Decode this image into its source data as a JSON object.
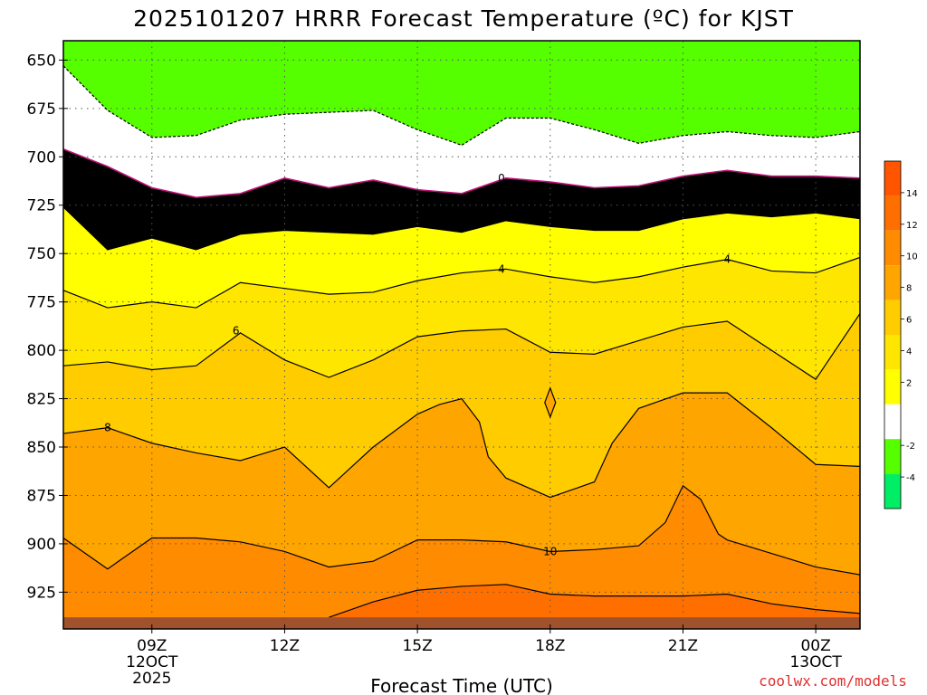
{
  "title": "2025101207 HRRR Forecast Temperature (ºC) for KJST",
  "credit": "coolwx.com/models",
  "chart_data": {
    "type": "contour",
    "xlabel": "Forecast Time (UTC)",
    "ylabel": "",
    "x_ticks": [
      {
        "x": 9,
        "lines": [
          "09Z",
          "12OCT",
          "2025"
        ]
      },
      {
        "x": 12,
        "lines": [
          "12Z"
        ]
      },
      {
        "x": 15,
        "lines": [
          "15Z"
        ]
      },
      {
        "x": 18,
        "lines": [
          "18Z"
        ]
      },
      {
        "x": 21,
        "lines": [
          "21Z"
        ]
      },
      {
        "x": 24,
        "lines": [
          "00Z",
          "13OCT"
        ]
      }
    ],
    "xlim": [
      7,
      25
    ],
    "y_ticks": [
      650,
      675,
      700,
      725,
      750,
      775,
      800,
      825,
      850,
      875,
      900,
      925
    ],
    "ylim": [
      640,
      944
    ],
    "y_axis": "pressure (hPa), increasing downward",
    "ground_level_hPa": 938,
    "colorbar": {
      "ticks": [
        -4,
        -2,
        2,
        4,
        6,
        8,
        10,
        12,
        14
      ],
      "bands": [
        {
          "from": -6,
          "to": -4,
          "color": "#00ee66"
        },
        {
          "from": -4,
          "to": -2,
          "color": "#55ff00"
        },
        {
          "from": -2,
          "to": 2,
          "color": "#ffffff"
        },
        {
          "from": 2,
          "to": 4,
          "color": "#ffff00"
        },
        {
          "from": 4,
          "to": 6,
          "color": "#ffe600"
        },
        {
          "from": 6,
          "to": 8,
          "color": "#ffcc00"
        },
        {
          "from": 8,
          "to": 10,
          "color": "#ffa500"
        },
        {
          "from": 10,
          "to": 12,
          "color": "#ff8c00"
        },
        {
          "from": 12,
          "to": 14,
          "color": "#ff6f00"
        },
        {
          "from": 14,
          "to": 16,
          "color": "#ff5500"
        }
      ]
    },
    "contour_labels": [
      {
        "value": "0",
        "x": 16.9,
        "p": 711
      },
      {
        "value": "4",
        "x": 16.9,
        "p": 758
      },
      {
        "value": "4",
        "x": 22.0,
        "p": 753
      },
      {
        "value": "6",
        "x": 10.9,
        "p": 790
      },
      {
        "value": "8",
        "x": 8.0,
        "p": 840
      },
      {
        "value": "10",
        "x": 18.0,
        "p": 904
      }
    ],
    "isotherms": [
      {
        "value": -2,
        "dashed": true,
        "x": [
          7,
          8,
          9,
          10,
          11,
          12,
          13,
          14,
          15,
          16,
          17,
          18,
          19,
          20,
          21,
          22,
          23,
          24,
          25
        ],
        "p": [
          653,
          676,
          690,
          689,
          681,
          678,
          677,
          676,
          686,
          694,
          680,
          680,
          686,
          693,
          689,
          687,
          689,
          690,
          687
        ]
      },
      {
        "value": 0,
        "dashed": false,
        "x": [
          7,
          8,
          9,
          10,
          11,
          12,
          13,
          14,
          15,
          16,
          17,
          18,
          19,
          20,
          21,
          22,
          23,
          24,
          25
        ],
        "p": [
          696,
          705,
          716,
          721,
          719,
          711,
          716,
          712,
          717,
          719,
          711,
          713,
          716,
          715,
          710,
          707,
          710,
          710,
          711
        ]
      },
      {
        "value": 2,
        "dashed": false,
        "x": [
          7,
          8,
          9,
          10,
          11,
          12,
          13,
          14,
          15,
          16,
          17,
          18,
          19,
          20,
          21,
          22,
          23,
          24,
          25
        ],
        "p": [
          726,
          748,
          742,
          748,
          740,
          738,
          739,
          740,
          736,
          739,
          733,
          736,
          738,
          738,
          732,
          729,
          731,
          729,
          732
        ]
      },
      {
        "value": 4,
        "dashed": false,
        "x": [
          7,
          8,
          9,
          10,
          11,
          12,
          13,
          14,
          15,
          16,
          17,
          18,
          19,
          20,
          21,
          22,
          23,
          24,
          25
        ],
        "p": [
          769,
          778,
          775,
          778,
          765,
          768,
          771,
          770,
          764,
          760,
          758,
          762,
          765,
          762,
          757,
          753,
          759,
          760,
          752
        ]
      },
      {
        "value": 6,
        "dashed": false,
        "x": [
          7,
          8,
          9,
          10,
          11,
          12,
          13,
          14,
          15,
          16,
          17,
          18,
          19,
          20,
          21,
          22,
          23,
          24,
          25
        ],
        "p": [
          808,
          806,
          810,
          808,
          791,
          805,
          814,
          805,
          793,
          790,
          789,
          801,
          802,
          795,
          788,
          785,
          800,
          815,
          781
        ]
      },
      {
        "value": 8,
        "dashed": false,
        "x": [
          7,
          8,
          9,
          10,
          11,
          12,
          13,
          14,
          15,
          15.5,
          16,
          16.4,
          16.6,
          17,
          18,
          19,
          19.4,
          20,
          20.5,
          21,
          22,
          23,
          24,
          25
        ],
        "p": [
          843,
          840,
          848,
          853,
          857,
          850,
          871,
          850,
          833,
          828,
          825,
          837,
          855,
          866,
          876,
          868,
          848,
          830,
          826,
          822,
          822,
          840,
          859,
          860
        ]
      },
      {
        "value": 10,
        "dashed": false,
        "x": [
          7,
          8,
          9,
          10,
          11,
          12,
          13,
          14,
          15,
          16,
          17,
          18,
          19,
          20,
          20.6,
          21,
          21.4,
          21.8,
          22,
          23,
          24,
          25
        ],
        "p": [
          897,
          913,
          897,
          897,
          899,
          904,
          912,
          909,
          898,
          898,
          899,
          904,
          903,
          901,
          889,
          870,
          877,
          895,
          898,
          905,
          912,
          916
        ]
      },
      {
        "value": 12,
        "dashed": false,
        "x": [
          13,
          14,
          15,
          16,
          17,
          18,
          19,
          20,
          21,
          22,
          23,
          24,
          25
        ],
        "p": [
          938,
          930,
          924,
          922,
          921,
          926,
          927,
          927,
          927,
          926,
          931,
          934,
          936
        ]
      }
    ],
    "annotations": [
      {
        "type": "closed-contour",
        "value": 8,
        "x": 18.0,
        "p": 827
      }
    ]
  }
}
